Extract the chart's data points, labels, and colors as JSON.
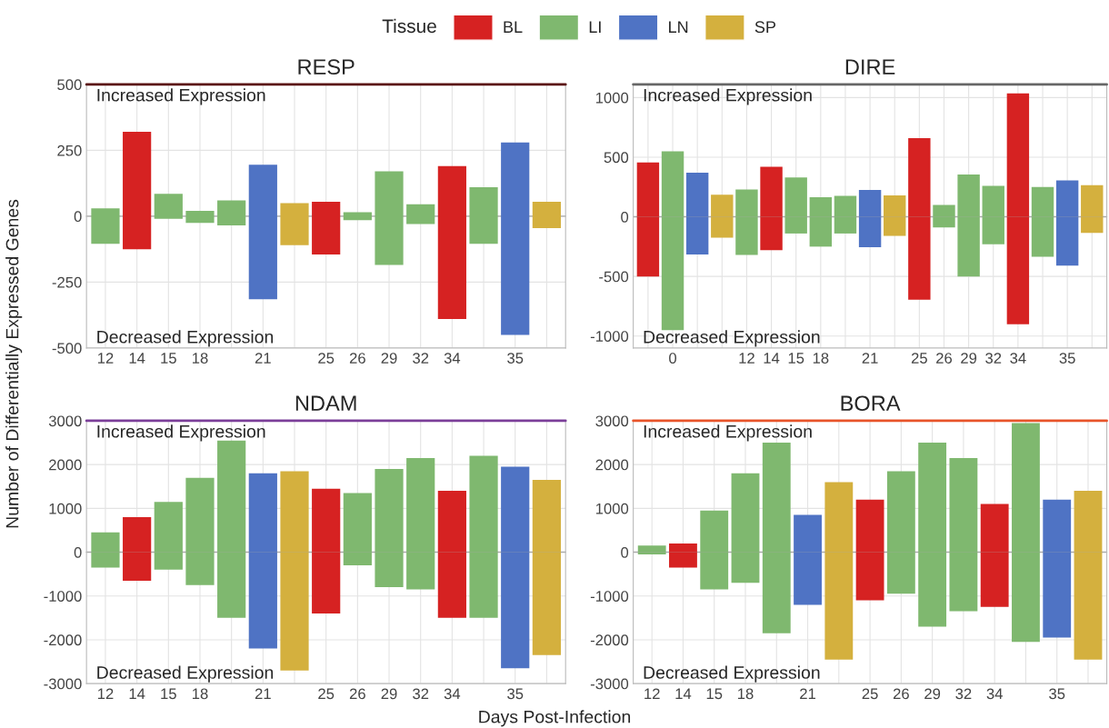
{
  "chart_data": [
    {
      "type": "bar",
      "title": "RESP",
      "xlabel": "Days Post-Infection",
      "ylabel": "Number of Differentially Expressed Genes",
      "legend_title": "Tissue",
      "legend": "top",
      "stacked": true,
      "grid": true,
      "annotations": [
        "Increased Expression",
        "Decreased Expression"
      ],
      "categories": [
        "12",
        "14",
        "15",
        "18",
        null,
        "21",
        null,
        "25",
        "26",
        "29",
        "32",
        "34",
        null,
        "35",
        null
      ],
      "ylim": [
        -500,
        500
      ],
      "yticks": [
        -500,
        -250,
        0,
        250,
        500
      ],
      "ref_lines": [
        {
          "axis": "y",
          "value": 500,
          "color": "#5a1010"
        },
        {
          "axis": "y",
          "value": 0,
          "color": "#aaaaaa"
        }
      ],
      "series": [
        {
          "name": "BL",
          "color": "#d62222",
          "values": [
            null,
            320,
            null,
            null,
            null,
            null,
            null,
            55,
            null,
            null,
            null,
            190,
            null,
            null,
            null
          ]
        },
        {
          "color": "#d62222",
          "values": [
            null,
            -125,
            null,
            null,
            null,
            null,
            null,
            -145,
            null,
            null,
            null,
            -390,
            null,
            null,
            null
          ]
        },
        {
          "name": "LI",
          "color": "#7fb86f",
          "values": [
            30,
            null,
            85,
            20,
            60,
            null,
            null,
            null,
            15,
            170,
            45,
            null,
            110,
            null,
            null
          ]
        },
        {
          "color": "#7fb86f",
          "values": [
            -105,
            null,
            -10,
            -25,
            -35,
            null,
            null,
            null,
            -15,
            -185,
            -30,
            null,
            -105,
            null,
            null
          ]
        },
        {
          "name": "LN",
          "color": "#4f73c4",
          "values": [
            null,
            null,
            null,
            null,
            null,
            195,
            null,
            null,
            null,
            null,
            null,
            null,
            null,
            280,
            null
          ]
        },
        {
          "color": "#4f73c4",
          "values": [
            null,
            null,
            null,
            null,
            null,
            -315,
            null,
            null,
            null,
            null,
            null,
            null,
            null,
            -450,
            null
          ]
        },
        {
          "name": "SP",
          "color": "#d4b03e",
          "values": [
            null,
            null,
            null,
            null,
            null,
            null,
            50,
            null,
            null,
            null,
            null,
            null,
            null,
            null,
            55
          ]
        },
        {
          "color": "#d4b03e",
          "values": [
            null,
            null,
            null,
            null,
            null,
            null,
            -110,
            null,
            null,
            null,
            null,
            null,
            null,
            null,
            -45
          ]
        }
      ]
    },
    {
      "type": "bar",
      "title": "DIRE",
      "stacked": true,
      "grid": true,
      "annotations": [
        "Increased Expression",
        "Decreased Expression"
      ],
      "categories": [
        null,
        "0",
        null,
        null,
        "12",
        "14",
        "15",
        "18",
        null,
        "21",
        null,
        "25",
        "26",
        "29",
        "32",
        "34",
        null,
        "35",
        null
      ],
      "ylim": [
        -1100,
        1110
      ],
      "yticks": [
        -1000,
        -500,
        0,
        500,
        1000
      ],
      "ref_lines": [
        {
          "axis": "y",
          "value": 1110,
          "color": "#666666"
        },
        {
          "axis": "y",
          "value": 0,
          "color": "#aaaaaa"
        }
      ],
      "series": [
        {
          "color": "#d62222",
          "values": [
            455,
            null,
            null,
            null,
            null,
            420,
            null,
            null,
            null,
            null,
            null,
            660,
            null,
            null,
            null,
            1035,
            null,
            null,
            null
          ]
        },
        {
          "color": "#d62222",
          "values": [
            -500,
            null,
            null,
            null,
            null,
            -280,
            null,
            null,
            null,
            null,
            null,
            -695,
            null,
            null,
            null,
            -900,
            null,
            null,
            null
          ]
        },
        {
          "color": "#7fb86f",
          "values": [
            null,
            550,
            null,
            null,
            230,
            null,
            330,
            165,
            175,
            null,
            null,
            null,
            100,
            355,
            260,
            null,
            250,
            null,
            null
          ]
        },
        {
          "color": "#7fb86f",
          "values": [
            null,
            -950,
            null,
            null,
            -320,
            null,
            -140,
            -250,
            -140,
            null,
            null,
            null,
            -90,
            -500,
            -230,
            null,
            -335,
            null,
            null
          ]
        },
        {
          "color": "#4f73c4",
          "values": [
            null,
            null,
            370,
            null,
            null,
            null,
            null,
            null,
            null,
            225,
            null,
            null,
            null,
            null,
            null,
            null,
            null,
            305,
            null
          ]
        },
        {
          "color": "#4f73c4",
          "values": [
            null,
            null,
            -315,
            null,
            null,
            null,
            null,
            null,
            null,
            -255,
            null,
            null,
            null,
            null,
            null,
            null,
            null,
            -410,
            null
          ]
        },
        {
          "color": "#d4b03e",
          "values": [
            null,
            null,
            null,
            185,
            null,
            null,
            null,
            null,
            null,
            null,
            180,
            null,
            null,
            null,
            null,
            null,
            null,
            null,
            265
          ]
        },
        {
          "color": "#d4b03e",
          "values": [
            null,
            null,
            null,
            -175,
            null,
            null,
            null,
            null,
            null,
            null,
            -160,
            null,
            null,
            null,
            null,
            null,
            null,
            null,
            -135
          ]
        }
      ]
    },
    {
      "type": "bar",
      "title": "NDAM",
      "stacked": true,
      "grid": true,
      "annotations": [
        "Increased Expression",
        "Decreased Expression"
      ],
      "categories": [
        "12",
        "14",
        "15",
        "18",
        null,
        "21",
        null,
        "25",
        "26",
        "29",
        "32",
        "34",
        null,
        "35",
        null
      ],
      "ylim": [
        -3000,
        3000
      ],
      "yticks": [
        -3000,
        -2000,
        -1000,
        0,
        1000,
        2000,
        3000
      ],
      "ref_lines": [
        {
          "axis": "y",
          "value": 3000,
          "color": "#7b3f99"
        },
        {
          "axis": "y",
          "value": 0,
          "color": "#aaaaaa"
        }
      ],
      "series": [
        {
          "color": "#d62222",
          "values": [
            null,
            800,
            null,
            null,
            null,
            null,
            null,
            1450,
            null,
            null,
            null,
            1400,
            null,
            null,
            null
          ]
        },
        {
          "color": "#d62222",
          "values": [
            null,
            -650,
            null,
            null,
            null,
            null,
            null,
            -1400,
            null,
            null,
            null,
            -1500,
            null,
            null,
            null
          ]
        },
        {
          "color": "#7fb86f",
          "values": [
            450,
            null,
            1150,
            1700,
            2550,
            null,
            null,
            null,
            1350,
            1900,
            2150,
            null,
            2200,
            null,
            null
          ]
        },
        {
          "color": "#7fb86f",
          "values": [
            -350,
            null,
            -400,
            -750,
            -1500,
            null,
            null,
            null,
            -300,
            -800,
            -850,
            null,
            -1500,
            null,
            null
          ]
        },
        {
          "color": "#4f73c4",
          "values": [
            null,
            null,
            null,
            null,
            null,
            1800,
            null,
            null,
            null,
            null,
            null,
            null,
            null,
            1950,
            null
          ]
        },
        {
          "color": "#4f73c4",
          "values": [
            null,
            null,
            null,
            null,
            null,
            -2200,
            null,
            null,
            null,
            null,
            null,
            null,
            null,
            -2650,
            null
          ]
        },
        {
          "color": "#d4b03e",
          "values": [
            null,
            null,
            null,
            null,
            null,
            null,
            1850,
            null,
            null,
            null,
            null,
            null,
            null,
            null,
            1650
          ]
        },
        {
          "color": "#d4b03e",
          "values": [
            null,
            null,
            null,
            null,
            null,
            null,
            -2700,
            null,
            null,
            null,
            null,
            null,
            null,
            null,
            -2350
          ]
        }
      ]
    },
    {
      "type": "bar",
      "title": "BORA",
      "stacked": true,
      "grid": true,
      "annotations": [
        "Increased Expression",
        "Decreased Expression"
      ],
      "categories": [
        "12",
        "14",
        "15",
        "18",
        null,
        "21",
        null,
        "25",
        "26",
        "29",
        "32",
        "34",
        null,
        "35",
        null
      ],
      "ylim": [
        -3000,
        3000
      ],
      "yticks": [
        -3000,
        -2000,
        -1000,
        0,
        1000,
        2000,
        3000
      ],
      "ref_lines": [
        {
          "axis": "y",
          "value": 3000,
          "color": "#e8542a"
        },
        {
          "axis": "y",
          "value": 0,
          "color": "#aaaaaa"
        }
      ],
      "series": [
        {
          "color": "#d62222",
          "values": [
            null,
            200,
            null,
            null,
            null,
            null,
            null,
            1200,
            null,
            null,
            null,
            1100,
            null,
            null,
            null
          ]
        },
        {
          "color": "#d62222",
          "values": [
            null,
            -350,
            null,
            null,
            null,
            null,
            null,
            -1100,
            null,
            null,
            null,
            -1250,
            null,
            null,
            null
          ]
        },
        {
          "color": "#7fb86f",
          "values": [
            150,
            null,
            950,
            1800,
            2500,
            null,
            null,
            null,
            1850,
            2500,
            2150,
            null,
            2950,
            null,
            null
          ]
        },
        {
          "color": "#7fb86f",
          "values": [
            -50,
            null,
            -850,
            -700,
            -1850,
            null,
            null,
            null,
            -950,
            -1700,
            -1350,
            null,
            -2050,
            null,
            null
          ]
        },
        {
          "color": "#4f73c4",
          "values": [
            null,
            null,
            null,
            null,
            null,
            850,
            null,
            null,
            null,
            null,
            null,
            null,
            null,
            1200,
            null
          ]
        },
        {
          "color": "#4f73c4",
          "values": [
            null,
            null,
            null,
            null,
            null,
            -1200,
            null,
            null,
            null,
            null,
            null,
            null,
            null,
            -1950,
            null
          ]
        },
        {
          "color": "#d4b03e",
          "values": [
            null,
            null,
            null,
            null,
            null,
            null,
            1600,
            null,
            null,
            null,
            null,
            null,
            null,
            null,
            1400
          ]
        },
        {
          "color": "#d4b03e",
          "values": [
            null,
            null,
            null,
            null,
            null,
            null,
            -2450,
            null,
            null,
            null,
            null,
            null,
            null,
            null,
            -2450
          ]
        }
      ]
    }
  ]
}
